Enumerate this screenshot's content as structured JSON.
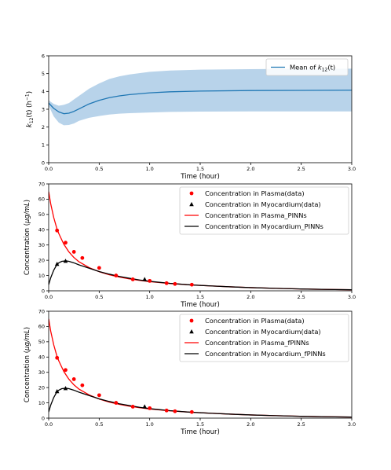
{
  "chart_data": [
    {
      "type": "line",
      "xlabel": "Time (hour)",
      "ylabel_base": "k",
      "ylabel_sub": "12",
      "ylabel_rest": "(t) (h",
      "ylabel_sup": "−1",
      "ylabel_end": ")",
      "xlim": [
        0,
        3
      ],
      "ylim": [
        0,
        6
      ],
      "xticks": [
        "0.0",
        "0.5",
        "1.0",
        "1.5",
        "2.0",
        "2.5",
        "3.0"
      ],
      "yticks": [
        "0",
        "1",
        "2",
        "3",
        "4",
        "5",
        "6"
      ],
      "legend_position": "top-right",
      "series": [
        {
          "name_pre": "Mean of ",
          "name_base": "k",
          "name_sub": "12",
          "name_post": "(t)",
          "color": "#1f77b4",
          "x": [
            0,
            0.05,
            0.1,
            0.15,
            0.2,
            0.25,
            0.3,
            0.4,
            0.5,
            0.6,
            0.7,
            0.8,
            1.0,
            1.2,
            1.5,
            2.0,
            2.5,
            3.0
          ],
          "y": [
            3.35,
            3.05,
            2.85,
            2.75,
            2.78,
            2.88,
            3.02,
            3.3,
            3.5,
            3.65,
            3.75,
            3.82,
            3.92,
            3.98,
            4.02,
            4.05,
            4.06,
            4.07
          ],
          "band_upper": [
            3.5,
            3.3,
            3.2,
            3.25,
            3.35,
            3.55,
            3.75,
            4.15,
            4.45,
            4.7,
            4.85,
            4.95,
            5.1,
            5.17,
            5.22,
            5.25,
            5.27,
            5.28
          ],
          "band_lower": [
            3.2,
            2.6,
            2.25,
            2.1,
            2.12,
            2.2,
            2.35,
            2.52,
            2.62,
            2.7,
            2.75,
            2.78,
            2.82,
            2.85,
            2.87,
            2.88,
            2.88,
            2.88
          ],
          "band_color": "#b8d3ea"
        }
      ]
    },
    {
      "type": "line",
      "xlabel": "Time (hour)",
      "ylabel_pre": "Concentration (",
      "ylabel_unit": "μg/mL",
      "ylabel_post": ")",
      "xlim": [
        0,
        3
      ],
      "ylim": [
        0,
        70
      ],
      "xticks": [
        "0.0",
        "0.5",
        "1.0",
        "1.5",
        "2.0",
        "2.5",
        "3.0"
      ],
      "yticks": [
        "0",
        "10",
        "20",
        "30",
        "40",
        "50",
        "60",
        "70"
      ],
      "legend_position": "top-right",
      "series": [
        {
          "name": "Concentration in Plasma(data)",
          "kind": "scatter-dot",
          "color": "#ff0000",
          "x": [
            0.083,
            0.167,
            0.25,
            0.333,
            0.5,
            0.667,
            0.833,
            1.0,
            1.167,
            1.25,
            1.417
          ],
          "y": [
            39.5,
            31.5,
            25.5,
            21.5,
            15.0,
            10.0,
            7.5,
            6.5,
            5.0,
            4.5,
            4.0
          ]
        },
        {
          "name": "Concentration in Myocardium(data)",
          "kind": "scatter-triangle",
          "color": "#000000",
          "x": [
            0.083,
            0.167,
            0.95
          ],
          "y": [
            17.5,
            19.5,
            7.5
          ]
        },
        {
          "name": "Concentration in Plasma_PINNs",
          "kind": "line",
          "color": "#ff0000",
          "x": [
            0,
            0.02,
            0.05,
            0.08,
            0.1,
            0.15,
            0.2,
            0.25,
            0.3,
            0.4,
            0.5,
            0.6,
            0.7,
            0.8,
            0.9,
            1.0,
            1.2,
            1.4,
            1.6,
            1.8,
            2.0,
            2.25,
            2.5,
            2.75,
            3.0
          ],
          "y": [
            65,
            57,
            48,
            41,
            37.5,
            30.5,
            25.5,
            21.8,
            19,
            15.2,
            12.5,
            10.5,
            9.0,
            7.8,
            6.8,
            6.0,
            4.8,
            3.9,
            3.2,
            2.6,
            2.1,
            1.6,
            1.2,
            0.9,
            0.7
          ]
        },
        {
          "name": "Concentration in Myocardium_PINNs",
          "kind": "line",
          "color": "#000000",
          "x": [
            0,
            0.02,
            0.05,
            0.08,
            0.1,
            0.13,
            0.17,
            0.2,
            0.25,
            0.3,
            0.4,
            0.5,
            0.6,
            0.7,
            0.8,
            0.9,
            1.0,
            1.2,
            1.4,
            1.6,
            1.8,
            2.0,
            2.25,
            2.5,
            2.75,
            3.0
          ],
          "y": [
            4,
            8.5,
            13.5,
            17.0,
            18.3,
            19.3,
            19.6,
            19.3,
            18.3,
            17.0,
            14.8,
            12.6,
            10.9,
            9.4,
            8.2,
            7.1,
            6.2,
            4.9,
            3.9,
            3.2,
            2.6,
            2.1,
            1.6,
            1.2,
            0.9,
            0.7
          ]
        }
      ]
    },
    {
      "type": "line",
      "xlabel": "Time (hour)",
      "ylabel_pre": "Concentration (",
      "ylabel_unit": "μg/mL",
      "ylabel_post": ")",
      "xlim": [
        0,
        3
      ],
      "ylim": [
        0,
        70
      ],
      "xticks": [
        "0.0",
        "0.5",
        "1.0",
        "1.5",
        "2.0",
        "2.5",
        "3.0"
      ],
      "yticks": [
        "0",
        "10",
        "20",
        "30",
        "40",
        "50",
        "60",
        "70"
      ],
      "legend_position": "top-right",
      "series": [
        {
          "name": "Concentration in Plasma(data)",
          "kind": "scatter-dot",
          "color": "#ff0000",
          "x": [
            0.083,
            0.167,
            0.25,
            0.333,
            0.5,
            0.667,
            0.833,
            1.0,
            1.167,
            1.25,
            1.417
          ],
          "y": [
            39.5,
            31.5,
            25.5,
            21.5,
            15.0,
            10.0,
            7.5,
            6.5,
            5.0,
            4.5,
            4.0
          ]
        },
        {
          "name": "Concentration in Myocardium(data)",
          "kind": "scatter-triangle",
          "color": "#000000",
          "x": [
            0.083,
            0.167,
            0.95
          ],
          "y": [
            17.5,
            19.5,
            7.5
          ]
        },
        {
          "name": "Concentration in Plasma_fPINNs",
          "kind": "line",
          "color": "#ff0000",
          "x": [
            0,
            0.02,
            0.05,
            0.08,
            0.1,
            0.15,
            0.2,
            0.25,
            0.3,
            0.4,
            0.5,
            0.6,
            0.7,
            0.8,
            0.9,
            1.0,
            1.2,
            1.4,
            1.6,
            1.8,
            2.0,
            2.25,
            2.5,
            2.75,
            3.0
          ],
          "y": [
            65,
            57,
            48,
            41,
            37.5,
            30.5,
            25.5,
            21.8,
            19,
            15.2,
            12.5,
            10.5,
            9.0,
            7.8,
            6.8,
            6.0,
            4.8,
            3.9,
            3.2,
            2.6,
            2.1,
            1.6,
            1.2,
            0.9,
            0.7
          ]
        },
        {
          "name": "Concentration in Myocardium_fPINNs",
          "kind": "line",
          "color": "#000000",
          "x": [
            0,
            0.02,
            0.05,
            0.08,
            0.1,
            0.13,
            0.17,
            0.2,
            0.25,
            0.3,
            0.4,
            0.5,
            0.6,
            0.7,
            0.8,
            0.9,
            1.0,
            1.2,
            1.4,
            1.6,
            1.8,
            2.0,
            2.25,
            2.5,
            2.75,
            3.0
          ],
          "y": [
            4,
            8.5,
            13.5,
            17.0,
            18.3,
            19.3,
            19.6,
            19.3,
            18.3,
            17.0,
            14.8,
            12.6,
            10.9,
            9.4,
            8.2,
            7.1,
            6.2,
            4.9,
            3.9,
            3.2,
            2.6,
            2.1,
            1.6,
            1.2,
            0.9,
            0.7
          ]
        }
      ]
    }
  ]
}
